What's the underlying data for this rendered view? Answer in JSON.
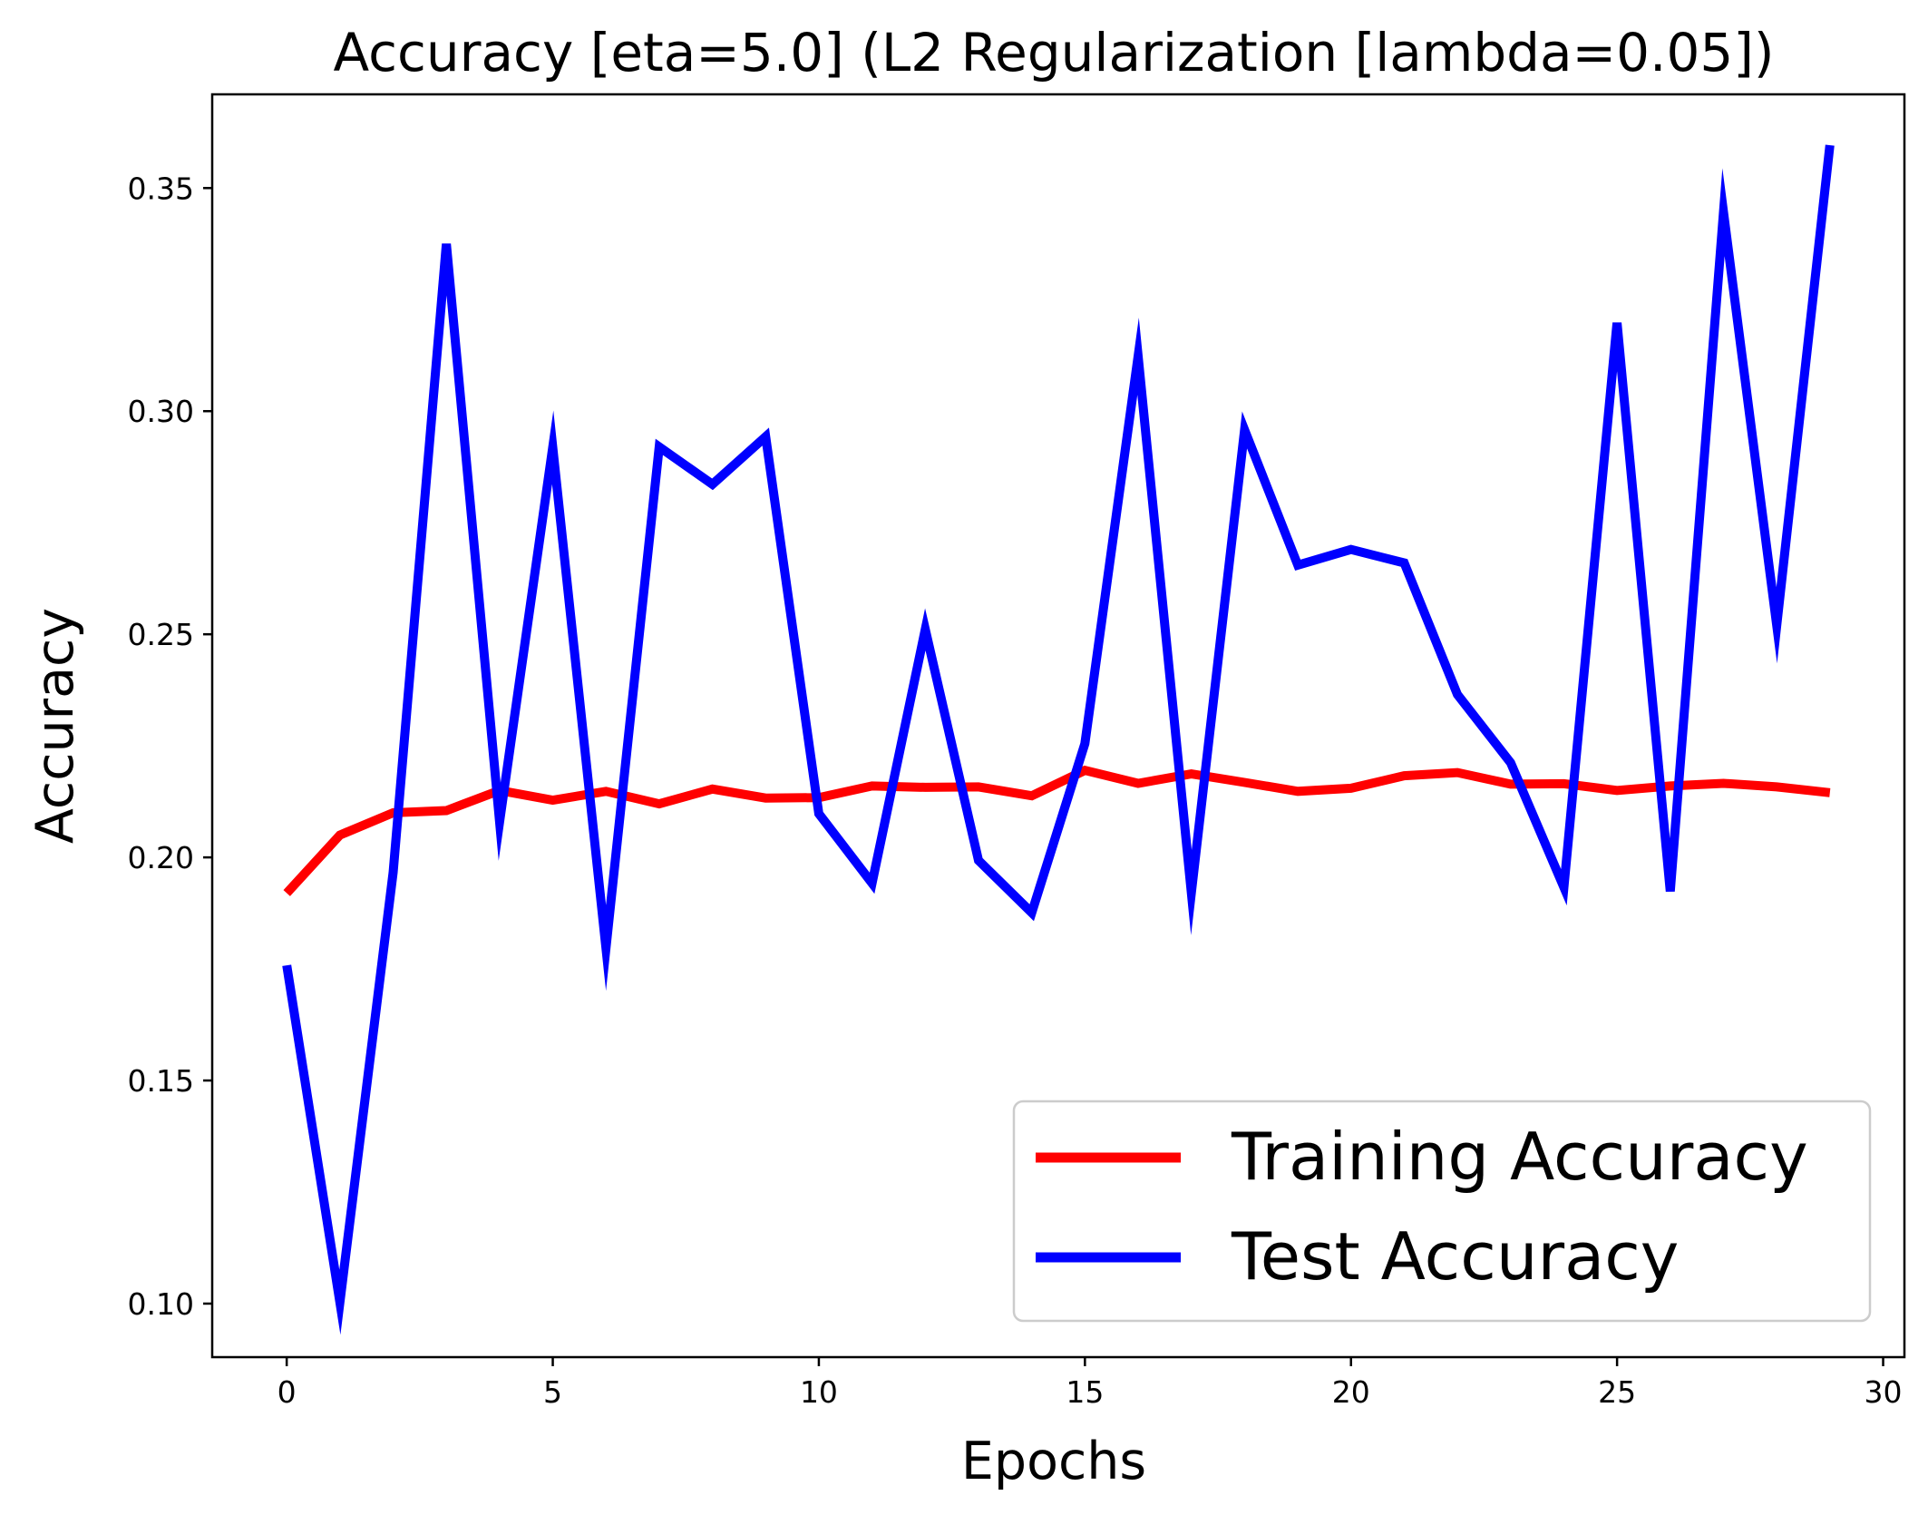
{
  "chart_data": {
    "type": "line",
    "title": "Accuracy [eta=5.0] (L2 Regularization [lambda=0.05])",
    "xlabel": "Epochs",
    "ylabel": "Accuracy",
    "xlim": [
      -1.4,
      30.4
    ],
    "ylim": [
      0.088,
      0.371
    ],
    "xticks": [
      0,
      5,
      10,
      15,
      20,
      25,
      30
    ],
    "xtick_labels": [
      "0",
      "5",
      "10",
      "15",
      "20",
      "25",
      "30"
    ],
    "yticks": [
      0.1,
      0.15,
      0.2,
      0.25,
      0.3,
      0.35
    ],
    "ytick_labels": [
      "0.10",
      "0.15",
      "0.20",
      "0.25",
      "0.30",
      "0.35"
    ],
    "grid": false,
    "legend_position": "lower-right",
    "x": [
      0,
      1,
      2,
      3,
      4,
      5,
      6,
      7,
      8,
      9,
      10,
      11,
      12,
      13,
      14,
      15,
      16,
      17,
      18,
      19,
      20,
      21,
      22,
      23,
      24,
      25,
      26,
      27,
      28,
      29
    ],
    "series": [
      {
        "name": "Training Accuracy",
        "color": "#ff0000",
        "values": [
          0.192,
          0.205,
          0.21,
          0.2105,
          0.215,
          0.2128,
          0.2148,
          0.212,
          0.2153,
          0.2133,
          0.2134,
          0.216,
          0.2157,
          0.2158,
          0.2138,
          0.2195,
          0.2166,
          0.2187,
          0.2168,
          0.2148,
          0.2155,
          0.2183,
          0.219,
          0.2164,
          0.2165,
          0.215,
          0.216,
          0.2166,
          0.2158,
          0.2145
        ]
      },
      {
        "name": "Test Accuracy",
        "color": "#0000ff",
        "values": [
          0.1758,
          0.1003,
          0.1966,
          0.3375,
          0.208,
          0.2919,
          0.1797,
          0.292,
          0.2836,
          0.2943,
          0.2098,
          0.1942,
          0.2511,
          0.1993,
          0.1876,
          0.2255,
          0.3123,
          0.1921,
          0.2958,
          0.2655,
          0.269,
          0.266,
          0.2365,
          0.2212,
          0.1933,
          0.3198,
          0.1924,
          0.3446,
          0.252,
          0.3596
        ]
      }
    ]
  }
}
